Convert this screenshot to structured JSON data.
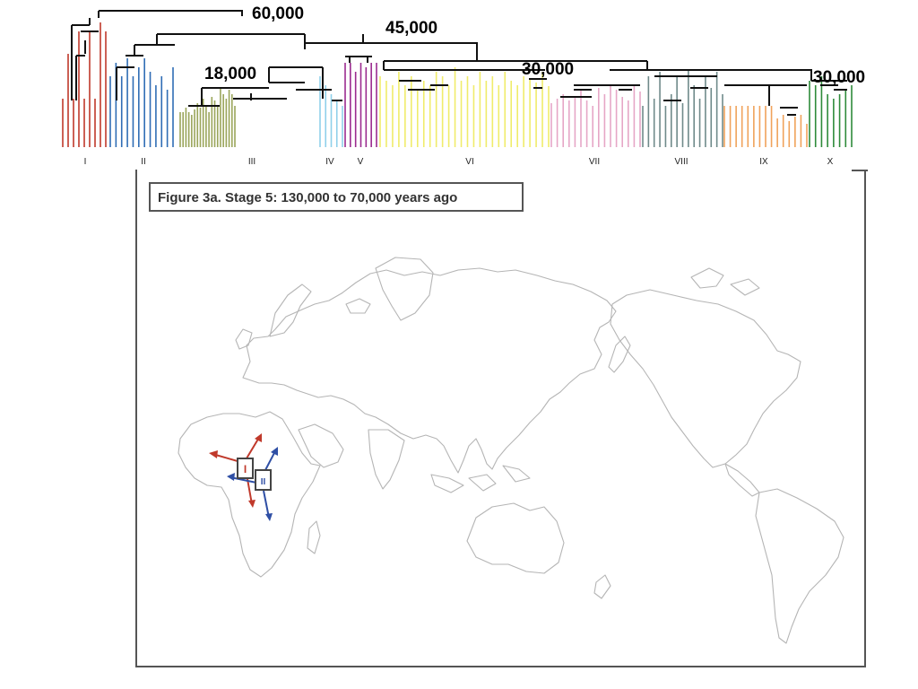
{
  "tree": {
    "age_labels": [
      "60,000",
      "45,000",
      "18,000",
      "30,000",
      "30,000"
    ],
    "clades": [
      {
        "label": "I",
        "color": "#c0392b"
      },
      {
        "label": "II",
        "color": "#2f6db5"
      },
      {
        "label": "III",
        "color": "#9aa55a"
      },
      {
        "label": "IV",
        "color": "#8fd0ea"
      },
      {
        "label": "V",
        "color": "#9b2a8f"
      },
      {
        "label": "VI",
        "color": "#f0ec6a"
      },
      {
        "label": "VII",
        "color": "#e6a6c6"
      },
      {
        "label": "VIII",
        "color": "#6f8a8a"
      },
      {
        "label": "IX",
        "color": "#f0a25a"
      },
      {
        "label": "X",
        "color": "#2e8b3a"
      }
    ]
  },
  "map": {
    "caption": "Figure 3a. Stage 5: 130,000 to 70,000 years ago",
    "markers": [
      {
        "label": "I",
        "color": "#c0392b"
      },
      {
        "label": "II",
        "color": "#2f4fa5"
      }
    ]
  }
}
